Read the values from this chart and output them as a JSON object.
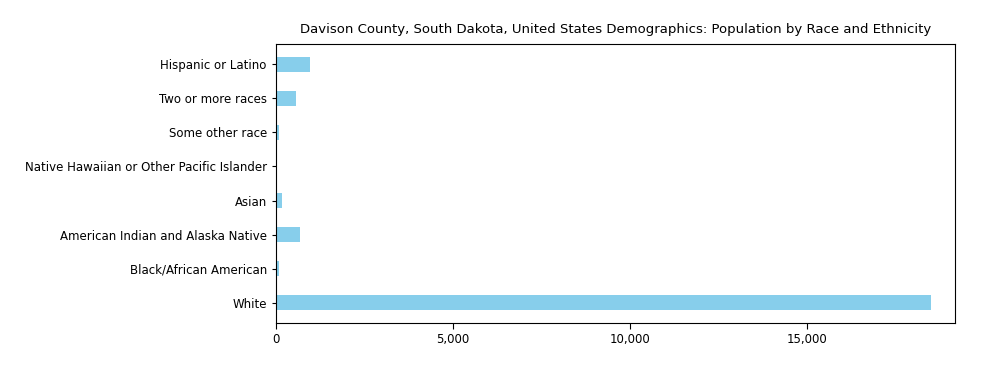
{
  "title": "Davison County, South Dakota, United States Demographics: Population by Race and Ethnicity",
  "categories": [
    "White",
    "Black/African American",
    "American Indian and Alaska Native",
    "Asian",
    "Native Hawaiian or Other Pacific Islander",
    "Some other race",
    "Two or more races",
    "Hispanic or Latino"
  ],
  "values": [
    18500,
    90,
    680,
    180,
    10,
    80,
    580,
    980
  ],
  "bar_color": "#87CEEB",
  "xlim": [
    0,
    19200
  ],
  "xticks": [
    0,
    5000,
    10000,
    15000
  ],
  "xtick_labels": [
    "0",
    "5,000",
    "10,000",
    "15,000"
  ],
  "figsize": [
    9.85,
    3.67
  ],
  "dpi": 100,
  "title_fontsize": 10
}
